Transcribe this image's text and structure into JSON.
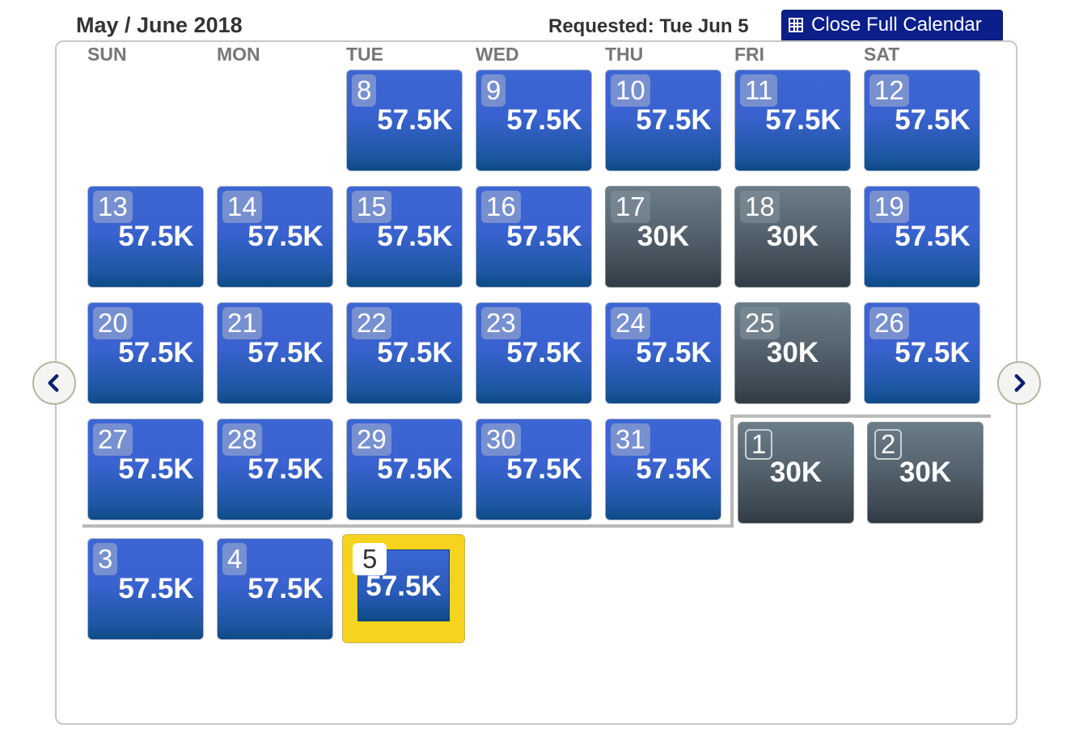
{
  "header": {
    "title": "May / June 2018",
    "requested": "Requested: Tue Jun 5",
    "close_label": "Close Full Calendar"
  },
  "weekdays": [
    "SUN",
    "MON",
    "TUE",
    "WED",
    "THU",
    "FRI",
    "SAT"
  ],
  "days": [
    {
      "day": "8",
      "price": "57.5K"
    },
    {
      "day": "9",
      "price": "57.5K"
    },
    {
      "day": "10",
      "price": "57.5K"
    },
    {
      "day": "11",
      "price": "57.5K"
    },
    {
      "day": "12",
      "price": "57.5K"
    },
    {
      "day": "13",
      "price": "57.5K"
    },
    {
      "day": "14",
      "price": "57.5K"
    },
    {
      "day": "15",
      "price": "57.5K"
    },
    {
      "day": "16",
      "price": "57.5K"
    },
    {
      "day": "17",
      "price": "30K"
    },
    {
      "day": "18",
      "price": "30K"
    },
    {
      "day": "19",
      "price": "57.5K"
    },
    {
      "day": "20",
      "price": "57.5K"
    },
    {
      "day": "21",
      "price": "57.5K"
    },
    {
      "day": "22",
      "price": "57.5K"
    },
    {
      "day": "23",
      "price": "57.5K"
    },
    {
      "day": "24",
      "price": "57.5K"
    },
    {
      "day": "25",
      "price": "30K"
    },
    {
      "day": "26",
      "price": "57.5K"
    },
    {
      "day": "27",
      "price": "57.5K"
    },
    {
      "day": "28",
      "price": "57.5K"
    },
    {
      "day": "29",
      "price": "57.5K"
    },
    {
      "day": "30",
      "price": "57.5K"
    },
    {
      "day": "31",
      "price": "57.5K"
    },
    {
      "day": "1",
      "price": "30K"
    },
    {
      "day": "2",
      "price": "30K"
    },
    {
      "day": "3",
      "price": "57.5K"
    },
    {
      "day": "4",
      "price": "57.5K"
    },
    {
      "day": "5",
      "price": "57.5K"
    }
  ],
  "colors": {
    "blue_tile": "#3a62d0",
    "gray_tile": "#55636e",
    "selected_border": "#f6d31e",
    "button": "#0b1f8a"
  },
  "icons": {
    "prev": "chevron-left-icon",
    "next": "chevron-right-icon",
    "calendar": "grid-icon"
  }
}
